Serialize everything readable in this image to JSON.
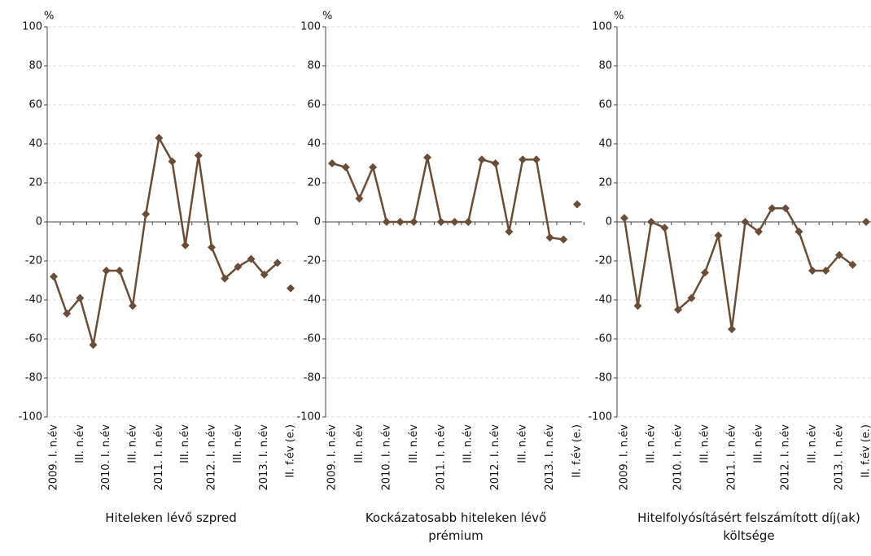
{
  "chart_data": [
    {
      "type": "line",
      "title": "Hiteleken lévő szpred",
      "y_unit": "%",
      "categories": [
        "2009. I. n.év",
        null,
        "III. n.év",
        null,
        "2010. I. n.év",
        null,
        "III. n.év",
        null,
        "2011. I. n.év",
        null,
        "III. n.év",
        null,
        "2012. I. n.év",
        null,
        "III. n.év",
        null,
        "2013. I. n.év",
        null,
        "II. f.év (e.)"
      ],
      "series": [
        {
          "color": "#6b4c35",
          "line": true,
          "values": [
            -28,
            -47,
            -39,
            -63,
            -25,
            -25,
            -43,
            4,
            43,
            31,
            -12,
            34,
            -13,
            -29,
            -23,
            -19,
            -27,
            -21,
            null
          ]
        },
        {
          "color": "#6b4c35",
          "line": false,
          "values": [
            null,
            null,
            null,
            null,
            null,
            null,
            null,
            null,
            null,
            null,
            null,
            null,
            null,
            null,
            null,
            null,
            null,
            null,
            -34
          ]
        }
      ],
      "ylim": [
        -100,
        100
      ],
      "yticks": [
        -100,
        -80,
        -60,
        -40,
        -20,
        0,
        20,
        40,
        60,
        80,
        100
      ],
      "grid": true
    },
    {
      "type": "line",
      "title": "Kockázatosabb hiteleken lévő prémium",
      "y_unit": "%",
      "categories": [
        "2009. I. n.év",
        null,
        "III. n.év",
        null,
        "2010. I. n.év",
        null,
        "III. n.év",
        null,
        "2011. I. n.év",
        null,
        "III. n.év",
        null,
        "2012. I. n.év",
        null,
        "III. n.év",
        null,
        "2013. I. n.év",
        null,
        "II. f.év (e.)"
      ],
      "series": [
        {
          "color": "#6b4c35",
          "line": true,
          "values": [
            30,
            28,
            12,
            28,
            0,
            0,
            0,
            33,
            0,
            0,
            0,
            32,
            30,
            -5,
            32,
            32,
            -8,
            -9,
            null
          ]
        },
        {
          "color": "#6b4c35",
          "line": false,
          "values": [
            null,
            null,
            null,
            null,
            null,
            null,
            null,
            null,
            null,
            null,
            null,
            null,
            null,
            null,
            null,
            null,
            null,
            null,
            9
          ]
        }
      ],
      "ylim": [
        -100,
        100
      ],
      "yticks": [
        -100,
        -80,
        -60,
        -40,
        -20,
        0,
        20,
        40,
        60,
        80,
        100
      ],
      "grid": true
    },
    {
      "type": "line",
      "title": "Hitelfolyósításért felszámított díj(ak) költsége",
      "y_unit": "%",
      "categories": [
        "2009. I. n.év",
        null,
        "III. n.év",
        null,
        "2010. I. n.év",
        null,
        "III. n.év",
        null,
        "2011. I. n.év",
        null,
        "III. n.év",
        null,
        "2012. I. n.év",
        null,
        "III. n.év",
        null,
        "2013. I. n.év",
        null,
        "II. f.év (e.)"
      ],
      "series": [
        {
          "color": "#6b4c35",
          "line": true,
          "values": [
            2,
            -43,
            0,
            -3,
            -45,
            -39,
            -26,
            -7,
            -55,
            0,
            -5,
            7,
            7,
            -5,
            -25,
            -25,
            -17,
            -22,
            null
          ]
        },
        {
          "color": "#6b4c35",
          "line": false,
          "values": [
            null,
            null,
            null,
            null,
            null,
            null,
            null,
            null,
            null,
            null,
            null,
            null,
            null,
            null,
            null,
            null,
            null,
            null,
            0
          ]
        }
      ],
      "ylim": [
        -100,
        100
      ],
      "yticks": [
        -100,
        -80,
        -60,
        -40,
        -20,
        0,
        20,
        40,
        60,
        80,
        100
      ],
      "grid": true
    }
  ]
}
